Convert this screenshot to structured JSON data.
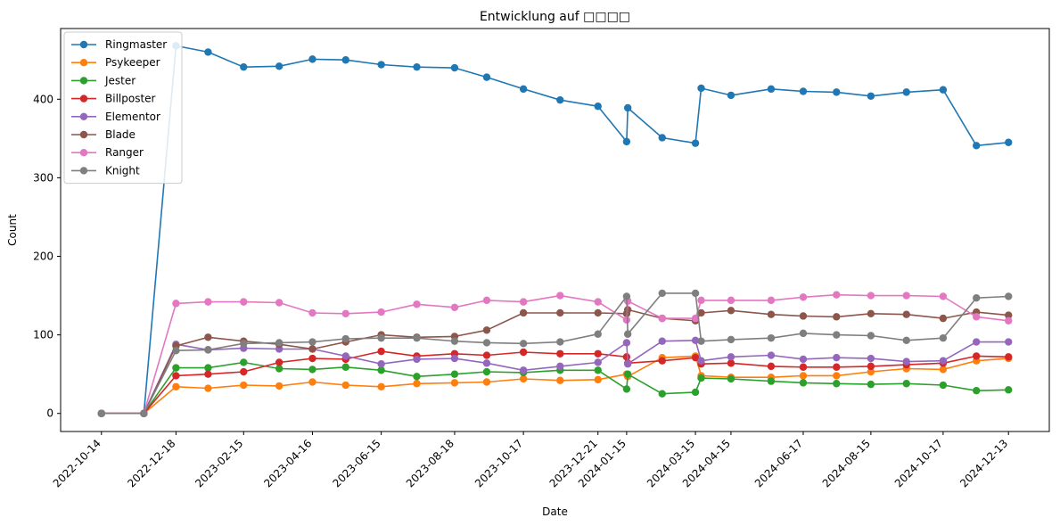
{
  "chart_data": {
    "type": "line",
    "title": "Entwicklung auf □□□□",
    "xlabel": "Date",
    "ylabel": "Count",
    "ylim": [
      -23,
      490
    ],
    "yticks": [
      0,
      100,
      200,
      300,
      400
    ],
    "grid": false,
    "legend_position": "upper-left",
    "xtick_labels": [
      "2022-10-14",
      "2022-12-18",
      "2023-02-15",
      "2023-04-16",
      "2023-06-15",
      "2023-08-18",
      "2023-10-17",
      "2023-12-21",
      "2024-01-15",
      "2024-03-15",
      "2024-04-15",
      "2024-06-17",
      "2024-08-15",
      "2024-10-17",
      "2024-12-13"
    ],
    "x": [
      "2022-10-14",
      "2022-11-20",
      "2022-12-18",
      "2023-01-15",
      "2023-02-15",
      "2023-03-18",
      "2023-04-16",
      "2023-05-15",
      "2023-06-15",
      "2023-07-16",
      "2023-08-18",
      "2023-09-15",
      "2023-10-17",
      "2023-11-18",
      "2023-12-21",
      "2024-01-15",
      "2024-01-16",
      "2024-02-15",
      "2024-03-15",
      "2024-03-20",
      "2024-04-15",
      "2024-05-20",
      "2024-06-17",
      "2024-07-16",
      "2024-08-15",
      "2024-09-15",
      "2024-10-17",
      "2024-11-15",
      "2024-12-13"
    ],
    "series": [
      {
        "name": "Ringmaster",
        "color": "#1f77b4",
        "values": [
          0,
          0,
          468,
          460,
          441,
          442,
          451,
          450,
          444,
          441,
          440,
          428,
          413,
          399,
          391,
          346,
          389,
          351,
          344,
          414,
          405,
          413,
          410,
          409,
          404,
          409,
          412,
          341,
          345
        ]
      },
      {
        "name": "Psykeeper",
        "color": "#ff7f0e",
        "values": [
          0,
          0,
          34,
          32,
          36,
          35,
          40,
          36,
          34,
          38,
          39,
          40,
          44,
          42,
          43,
          50,
          47,
          71,
          73,
          48,
          46,
          46,
          48,
          48,
          53,
          57,
          56,
          67,
          70
        ]
      },
      {
        "name": "Jester",
        "color": "#2ca02c",
        "values": [
          0,
          0,
          58,
          58,
          65,
          57,
          56,
          59,
          55,
          47,
          50,
          53,
          52,
          55,
          55,
          31,
          50,
          25,
          27,
          45,
          44,
          41,
          39,
          38,
          37,
          38,
          36,
          29,
          30
        ]
      },
      {
        "name": "Billposter",
        "color": "#d62728",
        "values": [
          0,
          0,
          48,
          50,
          53,
          65,
          70,
          69,
          79,
          73,
          76,
          74,
          78,
          76,
          76,
          72,
          64,
          67,
          71,
          63,
          64,
          60,
          59,
          59,
          60,
          62,
          64,
          73,
          72
        ]
      },
      {
        "name": "Elementor",
        "color": "#9467bd",
        "values": [
          0,
          0,
          88,
          81,
          83,
          82,
          82,
          73,
          63,
          69,
          70,
          64,
          55,
          60,
          65,
          90,
          63,
          92,
          93,
          67,
          72,
          74,
          69,
          71,
          70,
          66,
          67,
          91,
          91
        ]
      },
      {
        "name": "Blade",
        "color": "#8c564b",
        "values": [
          0,
          0,
          86,
          97,
          92,
          88,
          82,
          91,
          100,
          97,
          98,
          106,
          128,
          128,
          128,
          127,
          132,
          121,
          118,
          128,
          131,
          126,
          124,
          123,
          127,
          126,
          121,
          129,
          125
        ]
      },
      {
        "name": "Ranger",
        "color": "#e377c2",
        "values": [
          0,
          0,
          140,
          142,
          142,
          141,
          128,
          127,
          129,
          139,
          135,
          144,
          142,
          150,
          142,
          119,
          143,
          121,
          121,
          144,
          144,
          144,
          148,
          151,
          150,
          150,
          149,
          123,
          118
        ]
      },
      {
        "name": "Knight",
        "color": "#7f7f7f",
        "values": [
          0,
          0,
          80,
          81,
          89,
          90,
          91,
          95,
          96,
          96,
          92,
          90,
          89,
          91,
          101,
          149,
          101,
          153,
          153,
          92,
          94,
          96,
          102,
          100,
          99,
          93,
          96,
          147,
          149
        ]
      }
    ]
  }
}
